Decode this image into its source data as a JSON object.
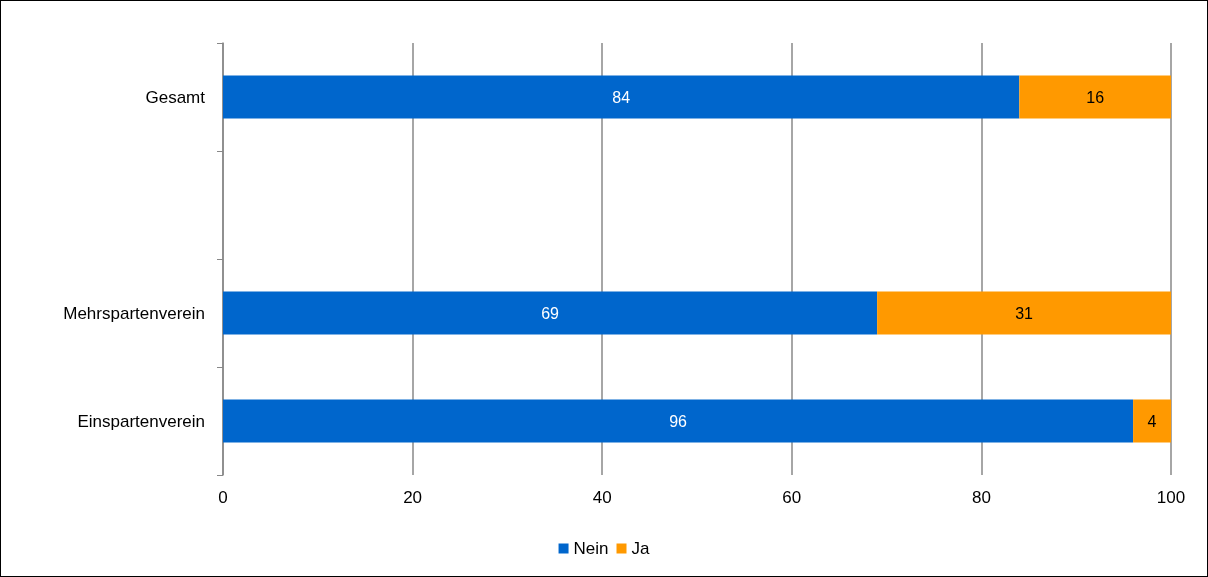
{
  "chart_data": {
    "type": "bar",
    "orientation": "horizontal",
    "stacked": true,
    "categories": [
      "Gesamt",
      null,
      "Mehrspartenverein",
      "Einspartenverein"
    ],
    "series": [
      {
        "name": "Nein",
        "color": "#0066cc",
        "values": [
          84,
          null,
          69,
          96
        ]
      },
      {
        "name": "Ja",
        "color": "#ff9900",
        "values": [
          16,
          null,
          31,
          4
        ]
      }
    ],
    "xlim": [
      0,
      100
    ],
    "xticks": [
      0,
      20,
      40,
      60,
      80,
      100
    ],
    "data_labels": true,
    "grid": "x",
    "legend": "bottom"
  }
}
